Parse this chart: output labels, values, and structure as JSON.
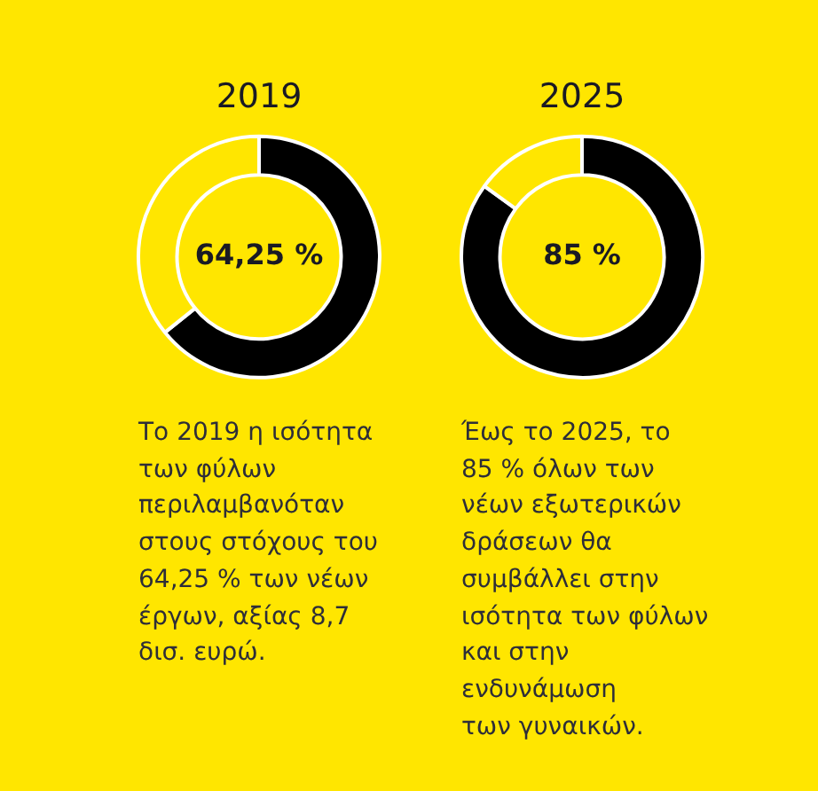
{
  "chart_data": [
    {
      "type": "donut",
      "title": "2019",
      "categories": [
        null,
        null
      ],
      "values": [
        64.25,
        35.75
      ],
      "colors": [
        "#000000",
        "#ffe600"
      ],
      "value_labels": [
        "64,25 %",
        null
      ],
      "annotations": [
        "Το 2019 η ισότητα\nτων φύλων\nπεριλαμβανόταν\nστους στόχους του\n64,25 % των νέων\nέργων, αξίας 8,7\nδισ. ευρώ."
      ]
    },
    {
      "type": "donut",
      "title": "2025",
      "categories": [
        null,
        null
      ],
      "values": [
        85,
        15
      ],
      "colors": [
        "#000000",
        "#ffe600"
      ],
      "value_labels": [
        "85 %",
        null
      ],
      "annotations": [
        "Έως το 2025, το\n85 % όλων των\nνέων εξωτερικών\nδράσεων θα\nσυμβάλλει στην\nισότητα των φύλων\nκαι στην\nενδυνάμωση\nτων γυναικών."
      ]
    }
  ]
}
